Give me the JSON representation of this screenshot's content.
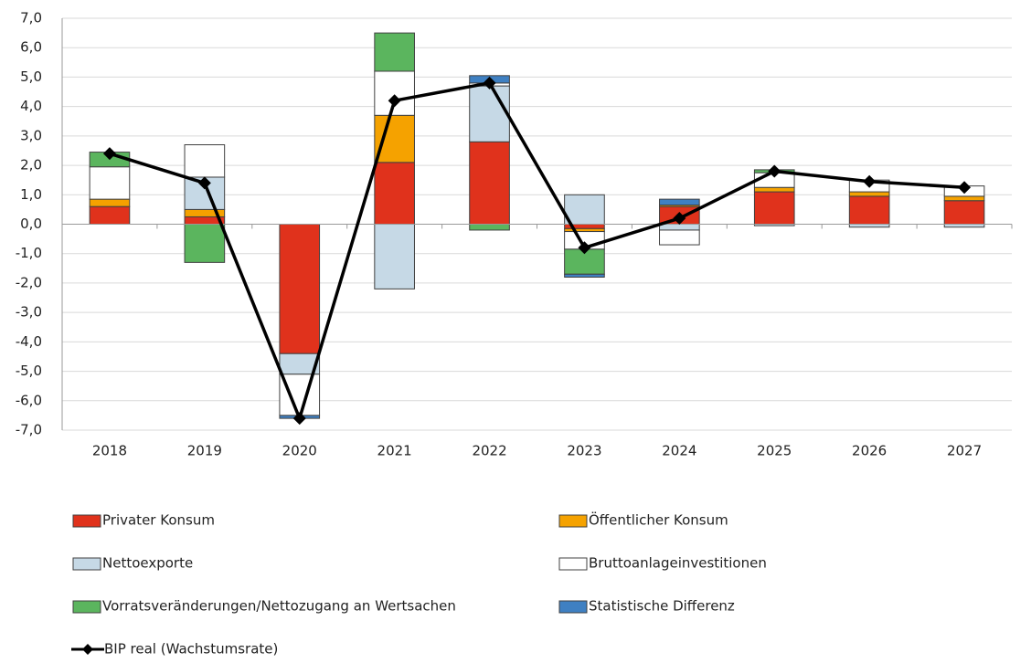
{
  "chart_data": {
    "type": "bar",
    "categories": [
      "2018",
      "2019",
      "2020",
      "2021",
      "2022",
      "2023",
      "2024",
      "2025",
      "2026",
      "2027"
    ],
    "series": [
      {
        "name": "Privater Konsum",
        "color": "#e0321c",
        "values": [
          0.6,
          0.25,
          -4.4,
          2.1,
          2.8,
          -0.15,
          0.6,
          1.1,
          0.95,
          0.8
        ]
      },
      {
        "name": "Öffentlicher Konsum",
        "color": "#f5a200",
        "values": [
          0.25,
          0.25,
          0,
          1.6,
          0,
          -0.1,
          0.05,
          0.15,
          0.15,
          0.15
        ]
      },
      {
        "name": "Nettoexporte",
        "color": "#c6d9e6",
        "values": [
          0,
          1.1,
          -0.7,
          -2.2,
          1.9,
          1.0,
          -0.2,
          -0.05,
          -0.1,
          -0.1
        ]
      },
      {
        "name": "Bruttoanlageinvestitionen",
        "color": "#ffffff",
        "values": [
          1.1,
          1.1,
          -1.4,
          1.5,
          0.1,
          -0.6,
          -0.5,
          0.5,
          0.4,
          0.35
        ]
      },
      {
        "name": "Vorratsveränderungen/Nettozugang an Wertsachen",
        "color": "#5bb55e",
        "values": [
          0.5,
          -1.3,
          0,
          1.3,
          -0.2,
          -0.85,
          0,
          0.1,
          0,
          0
        ]
      },
      {
        "name": "Statistische Differenz",
        "color": "#3f80c2",
        "values": [
          0,
          0,
          -0.1,
          0,
          0.25,
          -0.1,
          0.2,
          0,
          0,
          0
        ]
      },
      {
        "name": "BIP real (Wachstumsrate)",
        "type": "line",
        "color": "#000000",
        "values": [
          2.4,
          1.4,
          -6.6,
          4.2,
          4.8,
          -0.8,
          0.2,
          1.8,
          1.45,
          1.25
        ]
      }
    ],
    "ylim": [
      -7,
      7
    ],
    "yticks": [
      {
        "value": -7,
        "label": "-7,0"
      },
      {
        "value": -6,
        "label": "-6,0"
      },
      {
        "value": -5,
        "label": "-5,0"
      },
      {
        "value": -4,
        "label": "-4,0"
      },
      {
        "value": -3,
        "label": "-3,0"
      },
      {
        "value": -2,
        "label": "-2,0"
      },
      {
        "value": -1,
        "label": "-1,0"
      },
      {
        "value": 0,
        "label": "0,0"
      },
      {
        "value": 1,
        "label": "1,0"
      },
      {
        "value": 2,
        "label": "2,0"
      },
      {
        "value": 3,
        "label": "3,0"
      },
      {
        "value": 4,
        "label": "4,0"
      },
      {
        "value": 5,
        "label": "5,0"
      },
      {
        "value": 6,
        "label": "6,0"
      },
      {
        "value": 7,
        "label": "7,0"
      }
    ],
    "grid": true
  }
}
